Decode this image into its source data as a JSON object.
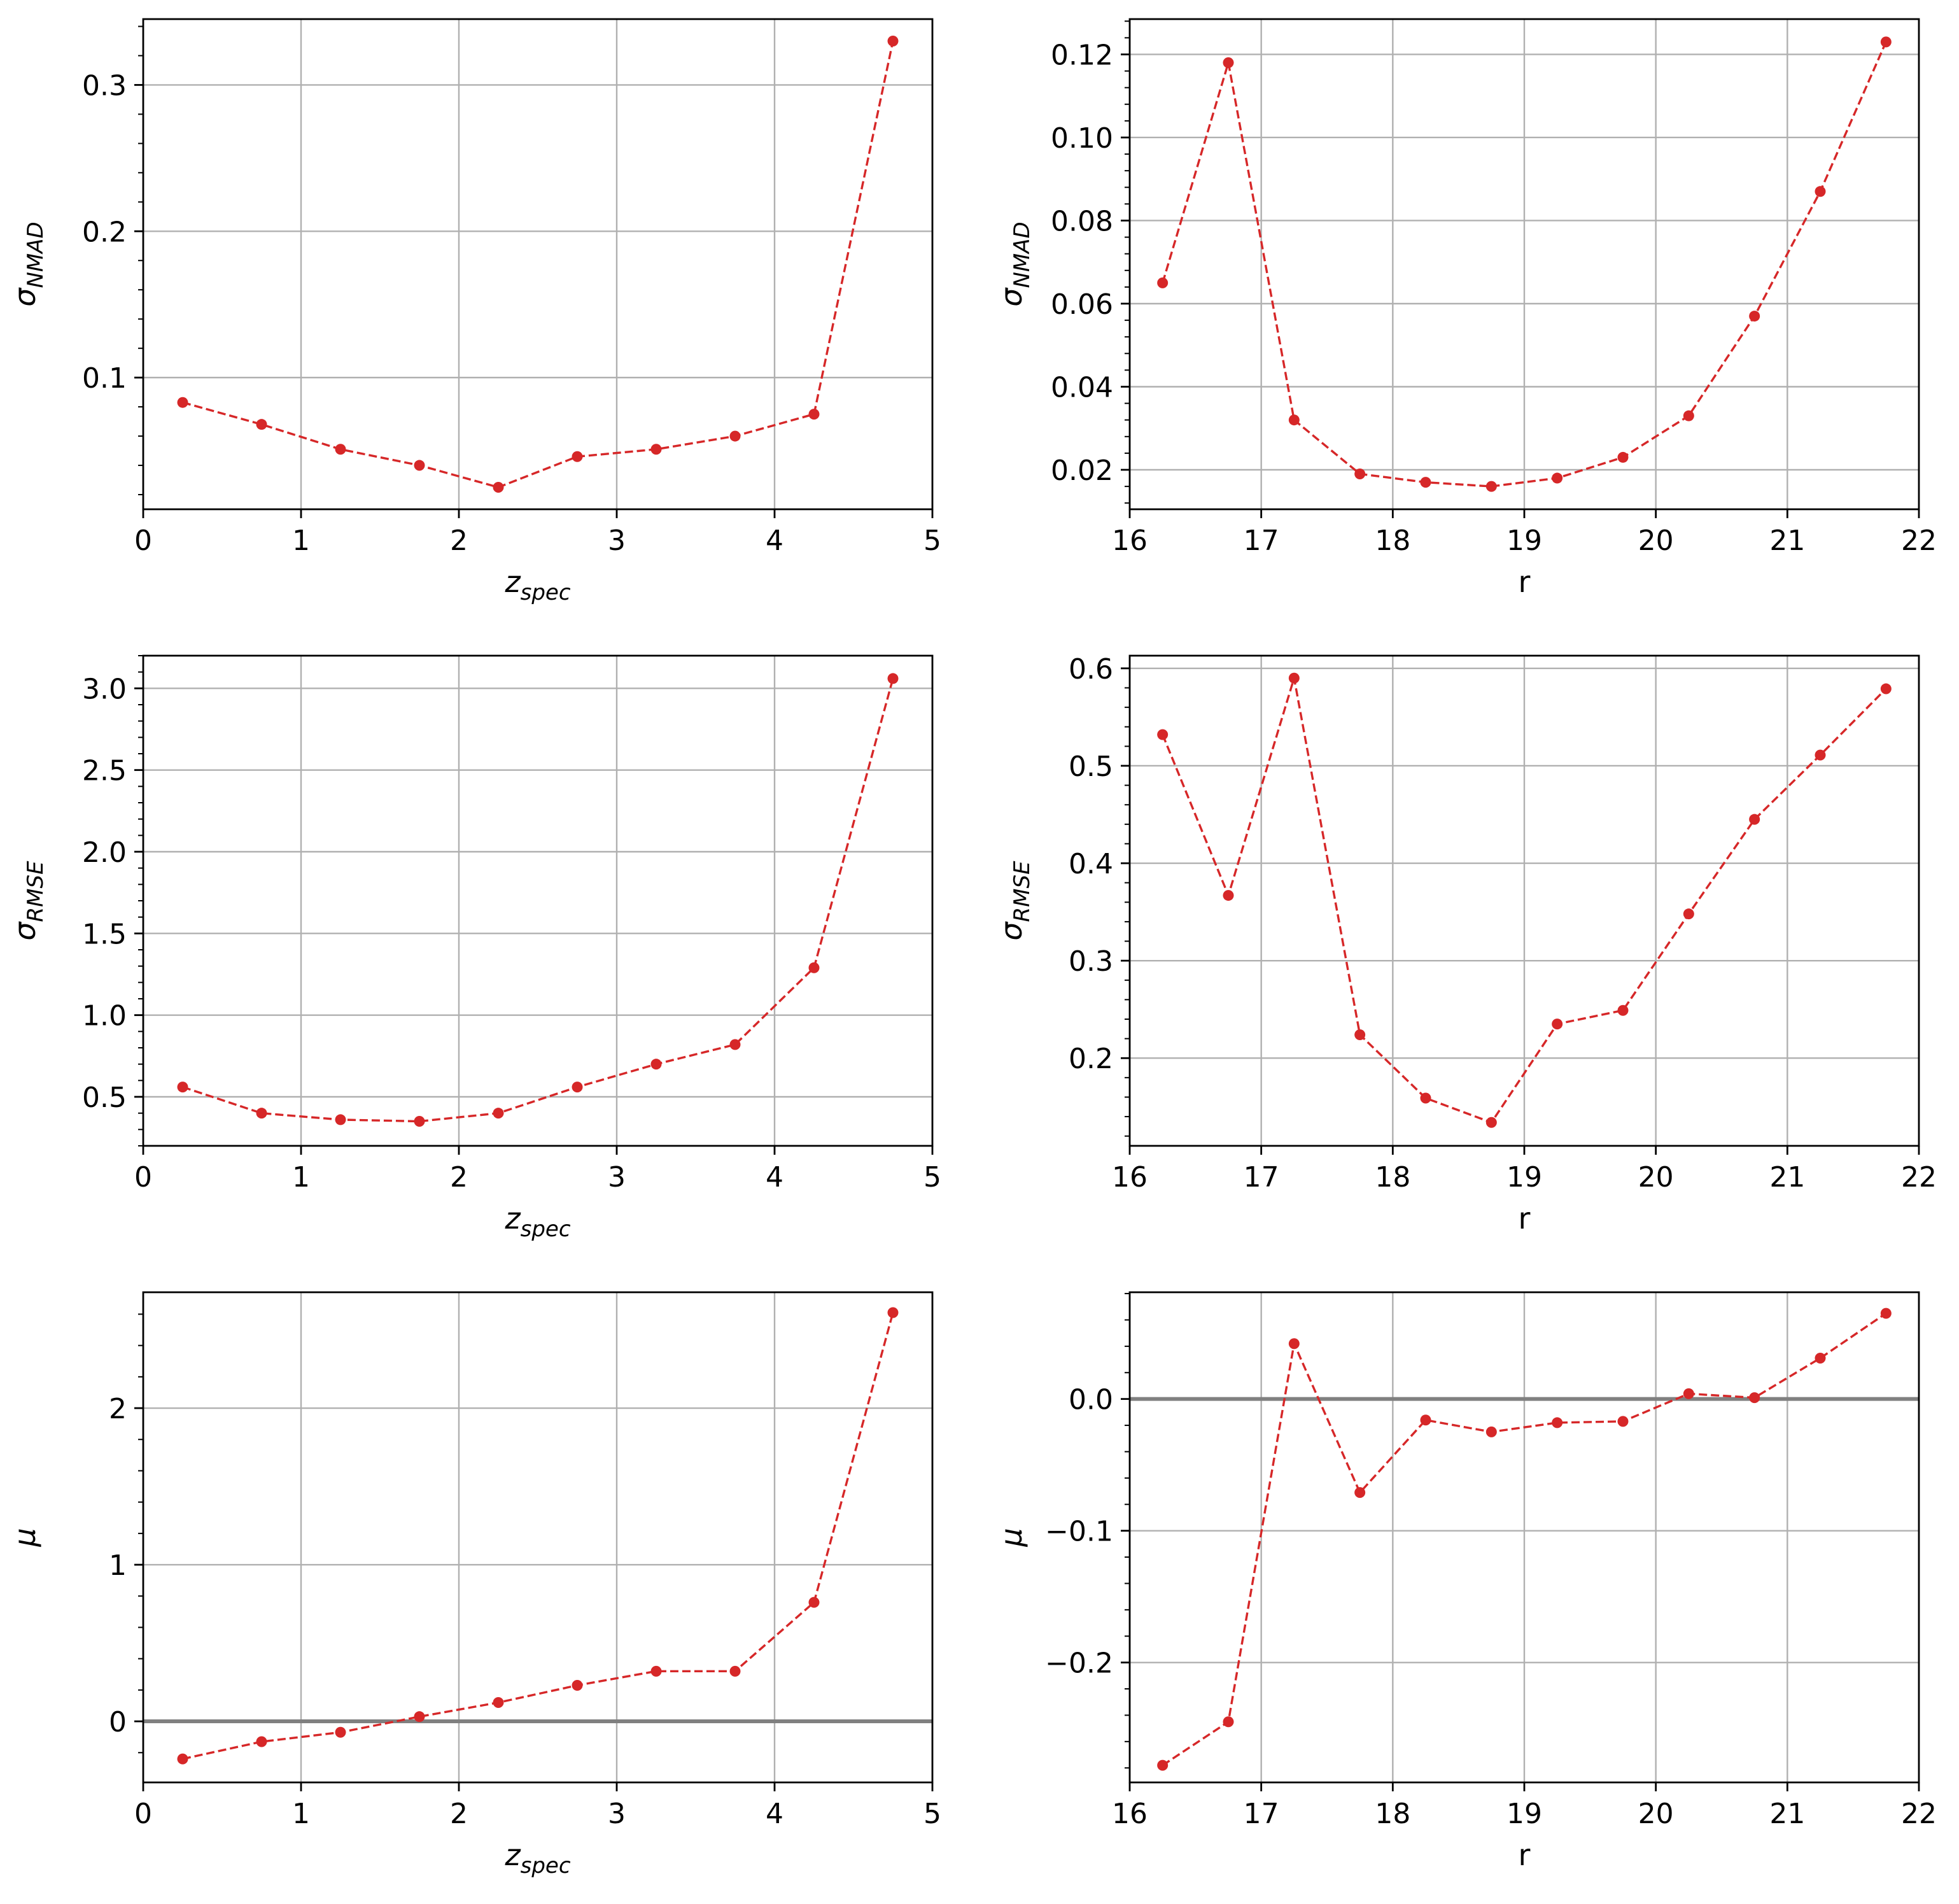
{
  "chart_data": [
    {
      "type": "line",
      "xlabel": "z",
      "xlabel_sub": "spec",
      "ylabel": "σ",
      "ylabel_sub": "NMAD",
      "xlim": [
        0,
        5
      ],
      "ylim": [
        0.01,
        0.345
      ],
      "x_ticks": [
        0,
        1,
        2,
        3,
        4,
        5
      ],
      "x_tick_labels": [
        "0",
        "1",
        "2",
        "3",
        "4",
        "5"
      ],
      "y_ticks": [
        0.1,
        0.2,
        0.3
      ],
      "y_tick_labels": [
        "0.1",
        "0.2",
        "0.3"
      ],
      "y_minor_step": 0.02,
      "grid": true,
      "reference_line": null,
      "series": [
        {
          "color": "#d62728",
          "x": [
            0.25,
            0.75,
            1.25,
            1.75,
            2.25,
            2.75,
            3.25,
            3.75,
            4.25,
            4.75
          ],
          "y": [
            0.083,
            0.068,
            0.051,
            0.04,
            0.025,
            0.046,
            0.051,
            0.06,
            0.075,
            0.33
          ]
        }
      ]
    },
    {
      "type": "line",
      "xlabel": "r",
      "xlabel_sub": "",
      "ylabel": "σ",
      "ylabel_sub": "NMAD",
      "xlim": [
        16,
        22
      ],
      "ylim": [
        0.0105,
        0.1285
      ],
      "x_ticks": [
        16,
        17,
        18,
        19,
        20,
        21,
        22
      ],
      "x_tick_labels": [
        "16",
        "17",
        "18",
        "19",
        "20",
        "21",
        "22"
      ],
      "y_ticks": [
        0.02,
        0.04,
        0.06,
        0.08,
        0.1,
        0.12
      ],
      "y_tick_labels": [
        "0.02",
        "0.04",
        "0.06",
        "0.08",
        "0.10",
        "0.12"
      ],
      "y_minor_step": 0.004,
      "grid": true,
      "reference_line": null,
      "series": [
        {
          "color": "#d62728",
          "x": [
            16.25,
            16.75,
            17.25,
            17.75,
            18.25,
            18.75,
            19.25,
            19.75,
            20.25,
            20.75,
            21.25,
            21.75
          ],
          "y": [
            0.065,
            0.118,
            0.032,
            0.019,
            0.017,
            0.016,
            0.018,
            0.023,
            0.033,
            0.057,
            0.087,
            0.123
          ]
        }
      ]
    },
    {
      "type": "line",
      "xlabel": "z",
      "xlabel_sub": "spec",
      "ylabel": "σ",
      "ylabel_sub": "RMSE",
      "xlim": [
        0,
        5
      ],
      "ylim": [
        0.2,
        3.2
      ],
      "x_ticks": [
        0,
        1,
        2,
        3,
        4,
        5
      ],
      "x_tick_labels": [
        "0",
        "1",
        "2",
        "3",
        "4",
        "5"
      ],
      "y_ticks": [
        0.5,
        1.0,
        1.5,
        2.0,
        2.5,
        3.0
      ],
      "y_tick_labels": [
        "0.5",
        "1.0",
        "1.5",
        "2.0",
        "2.5",
        "3.0"
      ],
      "y_minor_step": 0.1,
      "grid": true,
      "reference_line": null,
      "series": [
        {
          "color": "#d62728",
          "x": [
            0.25,
            0.75,
            1.25,
            1.75,
            2.25,
            2.75,
            3.25,
            3.75,
            4.25,
            4.75
          ],
          "y": [
            0.56,
            0.4,
            0.36,
            0.35,
            0.4,
            0.56,
            0.7,
            0.82,
            1.29,
            3.06
          ]
        }
      ]
    },
    {
      "type": "line",
      "xlabel": "r",
      "xlabel_sub": "",
      "ylabel": "σ",
      "ylabel_sub": "RMSE",
      "xlim": [
        16,
        22
      ],
      "ylim": [
        0.11,
        0.613
      ],
      "x_ticks": [
        16,
        17,
        18,
        19,
        20,
        21,
        22
      ],
      "x_tick_labels": [
        "16",
        "17",
        "18",
        "19",
        "20",
        "21",
        "22"
      ],
      "y_ticks": [
        0.2,
        0.3,
        0.4,
        0.5,
        0.6
      ],
      "y_tick_labels": [
        "0.2",
        "0.3",
        "0.4",
        "0.5",
        "0.6"
      ],
      "y_minor_step": 0.02,
      "grid": true,
      "reference_line": null,
      "series": [
        {
          "color": "#d62728",
          "x": [
            16.25,
            16.75,
            17.25,
            17.75,
            18.25,
            18.75,
            19.25,
            19.75,
            20.25,
            20.75,
            21.25,
            21.75
          ],
          "y": [
            0.532,
            0.367,
            0.59,
            0.224,
            0.159,
            0.134,
            0.235,
            0.249,
            0.348,
            0.445,
            0.511,
            0.579
          ]
        }
      ]
    },
    {
      "type": "line",
      "xlabel": "z",
      "xlabel_sub": "spec",
      "ylabel": "μ",
      "ylabel_sub": "",
      "xlim": [
        0,
        5
      ],
      "ylim": [
        -0.39,
        2.74
      ],
      "x_ticks": [
        0,
        1,
        2,
        3,
        4,
        5
      ],
      "x_tick_labels": [
        "0",
        "1",
        "2",
        "3",
        "4",
        "5"
      ],
      "y_ticks": [
        0,
        1,
        2
      ],
      "y_tick_labels": [
        "0",
        "1",
        "2"
      ],
      "y_minor_step": 0.2,
      "grid": true,
      "reference_line": 0,
      "series": [
        {
          "color": "#d62728",
          "x": [
            0.25,
            0.75,
            1.25,
            1.75,
            2.25,
            2.75,
            3.25,
            3.75,
            4.25,
            4.75
          ],
          "y": [
            -0.24,
            -0.13,
            -0.07,
            0.03,
            0.12,
            0.23,
            0.32,
            0.32,
            0.76,
            2.61
          ]
        }
      ]
    },
    {
      "type": "line",
      "xlabel": "r",
      "xlabel_sub": "",
      "ylabel": "μ",
      "ylabel_sub": "",
      "xlim": [
        16,
        22
      ],
      "ylim": [
        -0.291,
        0.081
      ],
      "x_ticks": [
        16,
        17,
        18,
        19,
        20,
        21,
        22
      ],
      "x_tick_labels": [
        "16",
        "17",
        "18",
        "19",
        "20",
        "21",
        "22"
      ],
      "y_ticks": [
        -0.2,
        -0.1,
        0.0
      ],
      "y_tick_labels": [
        "−0.2",
        "−0.1",
        "0.0"
      ],
      "y_minor_step": 0.02,
      "grid": true,
      "reference_line": 0,
      "series": [
        {
          "color": "#d62728",
          "x": [
            16.25,
            16.75,
            17.25,
            17.75,
            18.25,
            18.75,
            19.25,
            19.75,
            20.25,
            20.75,
            21.25,
            21.75
          ],
          "y": [
            -0.278,
            -0.245,
            0.042,
            -0.071,
            -0.016,
            -0.025,
            -0.018,
            -0.017,
            0.004,
            0.001,
            0.031,
            0.065
          ]
        }
      ]
    }
  ]
}
